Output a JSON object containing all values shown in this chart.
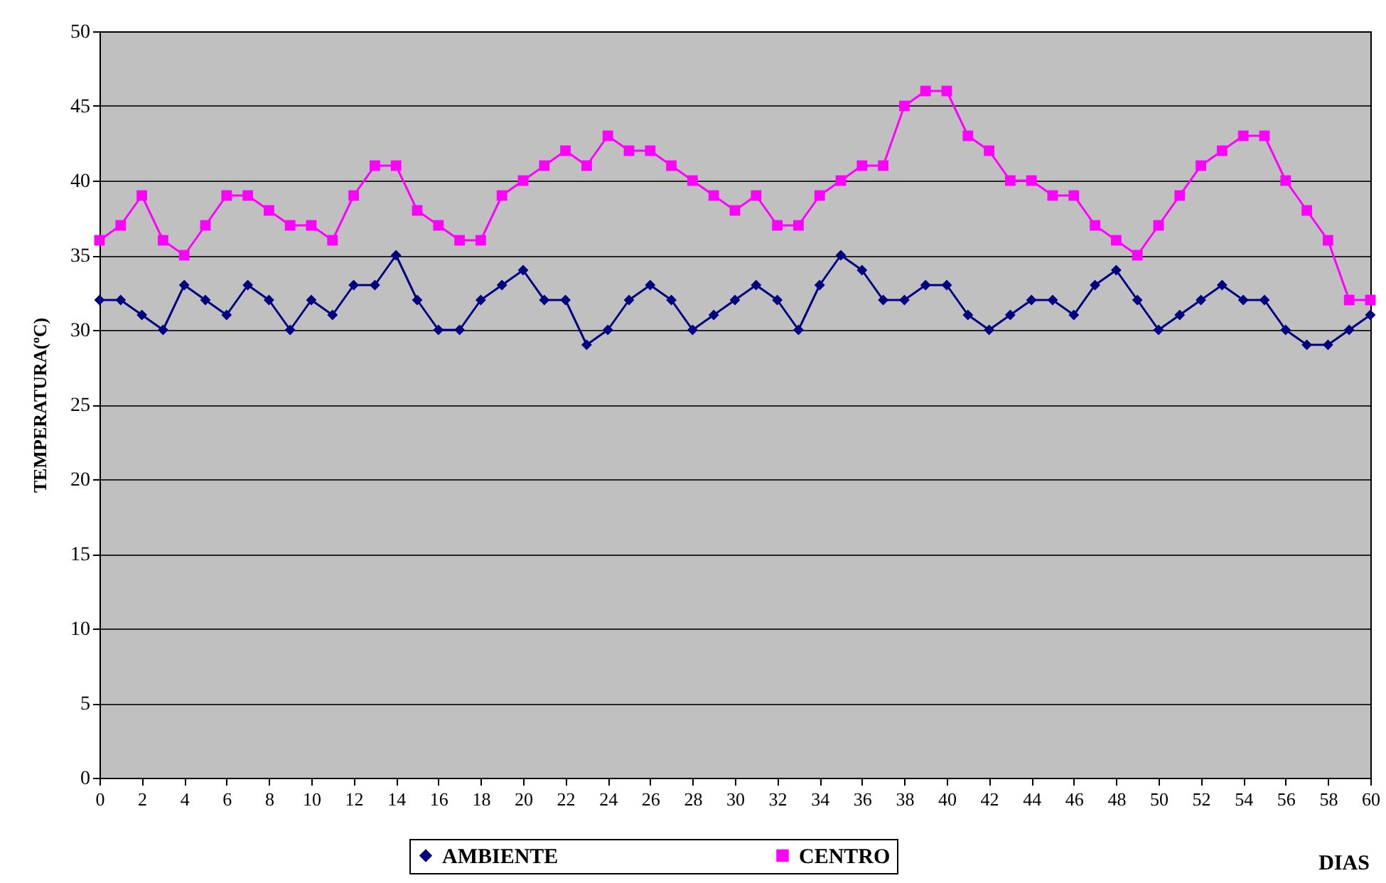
{
  "chart_data": {
    "type": "line",
    "xlabel": "DIAS",
    "ylabel": "TEMPERATURA(ºC)",
    "x": [
      0,
      1,
      2,
      3,
      4,
      5,
      6,
      7,
      8,
      9,
      10,
      11,
      12,
      13,
      14,
      15,
      16,
      17,
      18,
      19,
      20,
      21,
      22,
      23,
      24,
      25,
      26,
      27,
      28,
      29,
      30,
      31,
      32,
      33,
      34,
      35,
      36,
      37,
      38,
      39,
      40,
      41,
      42,
      43,
      44,
      45,
      46,
      47,
      48,
      49,
      50,
      51,
      52,
      53,
      54,
      55,
      56,
      57,
      58,
      59,
      60
    ],
    "series": [
      {
        "name": "AMBIENTE",
        "color": "#000080",
        "marker": "diamond",
        "values": [
          32,
          32,
          31,
          30,
          33,
          32,
          31,
          33,
          32,
          30,
          32,
          31,
          33,
          33,
          35,
          32,
          30,
          30,
          32,
          33,
          34,
          32,
          32,
          29,
          30,
          32,
          33,
          32,
          30,
          31,
          32,
          33,
          32,
          30,
          33,
          35,
          34,
          32,
          32,
          33,
          33,
          31,
          30,
          31,
          32,
          32,
          31,
          33,
          34,
          32,
          30,
          31,
          32,
          33,
          32,
          32,
          30,
          29,
          29,
          30,
          31
        ]
      },
      {
        "name": "CENTRO",
        "color": "#ff00ff",
        "marker": "square",
        "values": [
          36,
          37,
          39,
          36,
          35,
          37,
          39,
          39,
          38,
          37,
          37,
          36,
          39,
          41,
          41,
          38,
          37,
          36,
          36,
          39,
          40,
          41,
          42,
          41,
          43,
          42,
          42,
          41,
          40,
          39,
          38,
          39,
          37,
          37,
          39,
          40,
          41,
          41,
          45,
          46,
          46,
          43,
          42,
          40,
          40,
          39,
          39,
          37,
          36,
          35,
          37,
          39,
          41,
          42,
          43,
          43,
          40,
          38,
          36,
          32,
          32
        ]
      }
    ],
    "xlim": [
      0,
      60
    ],
    "xticks": [
      0,
      2,
      4,
      6,
      8,
      10,
      12,
      14,
      16,
      18,
      20,
      22,
      24,
      26,
      28,
      30,
      32,
      34,
      36,
      38,
      40,
      42,
      44,
      46,
      48,
      50,
      52,
      54,
      56,
      58,
      60
    ],
    "ylim": [
      0,
      50
    ],
    "yticks": [
      0,
      5,
      10,
      15,
      20,
      25,
      30,
      35,
      40,
      45,
      50
    ],
    "grid": "y",
    "legend": "bottom",
    "line_style": "solid"
  }
}
